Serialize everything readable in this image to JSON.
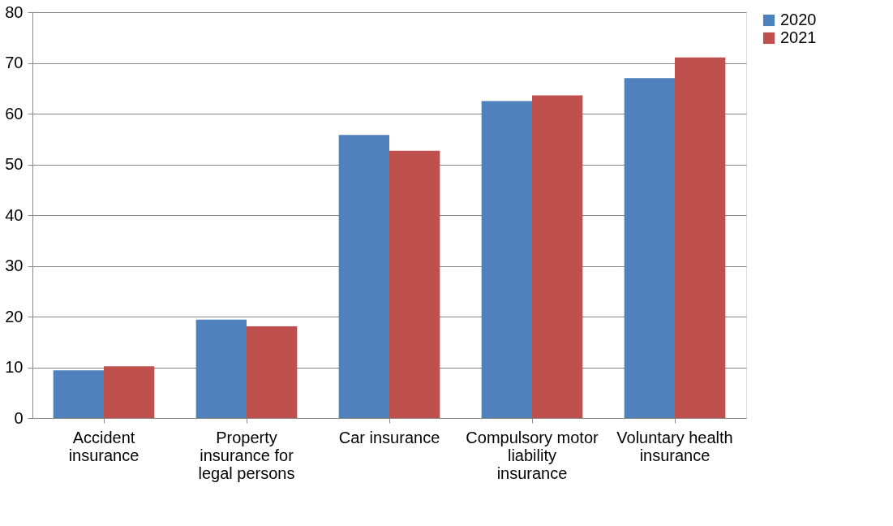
{
  "chart_data": {
    "type": "bar",
    "categories": [
      "Accident insurance",
      "Property insurance for legal persons",
      "Car insurance",
      "Compulsory motor liability insurance",
      "Voluntary health insurance"
    ],
    "series": [
      {
        "name": "2020",
        "color": "#4f81bd",
        "values": [
          9.4,
          19.4,
          55.8,
          62.5,
          67.0
        ]
      },
      {
        "name": "2021",
        "color": "#c0504d",
        "values": [
          10.2,
          18.1,
          52.7,
          63.6,
          71.1
        ]
      }
    ],
    "ylim": [
      0,
      80
    ],
    "yticks": [
      0,
      10,
      20,
      30,
      40,
      50,
      60,
      70,
      80
    ],
    "grid": "y",
    "legend": "right"
  }
}
